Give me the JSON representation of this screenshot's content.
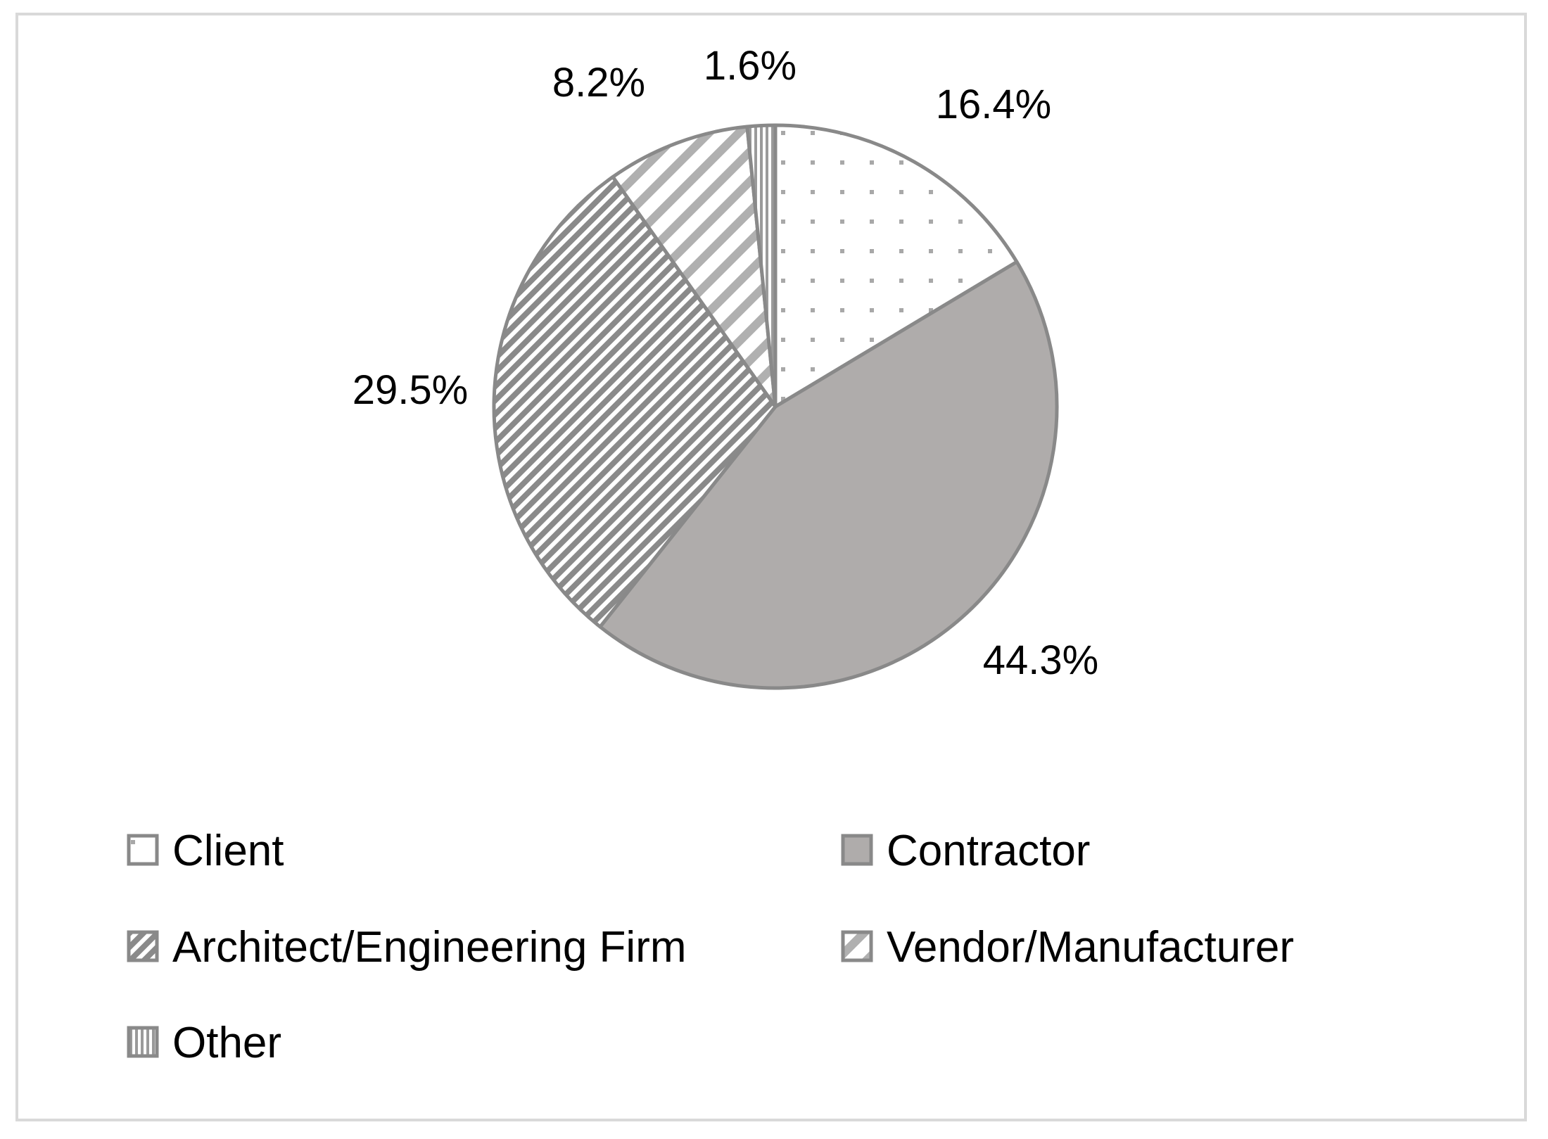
{
  "chart_data": {
    "type": "pie",
    "title": "",
    "start_angle_deg": 0,
    "direction": "clockwise",
    "slices": [
      {
        "name": "Client",
        "value": 16.4,
        "label": "16.4%",
        "pattern": "dots"
      },
      {
        "name": "Contractor",
        "value": 44.3,
        "label": "44.3%",
        "pattern": "solid"
      },
      {
        "name": "Architect/Engineering Firm",
        "value": 29.5,
        "label": "29.5%",
        "pattern": "dense-diagonal"
      },
      {
        "name": "Vendor/Manufacturer",
        "value": 8.2,
        "label": "8.2%",
        "pattern": "wide-diagonal"
      },
      {
        "name": "Other",
        "value": 1.6,
        "label": "1.6%",
        "pattern": "vertical-stripes"
      }
    ],
    "legend_position": "bottom",
    "colors": {
      "fill": "#afacab",
      "stroke": "#898989",
      "frame": "#d9d9d9"
    }
  }
}
